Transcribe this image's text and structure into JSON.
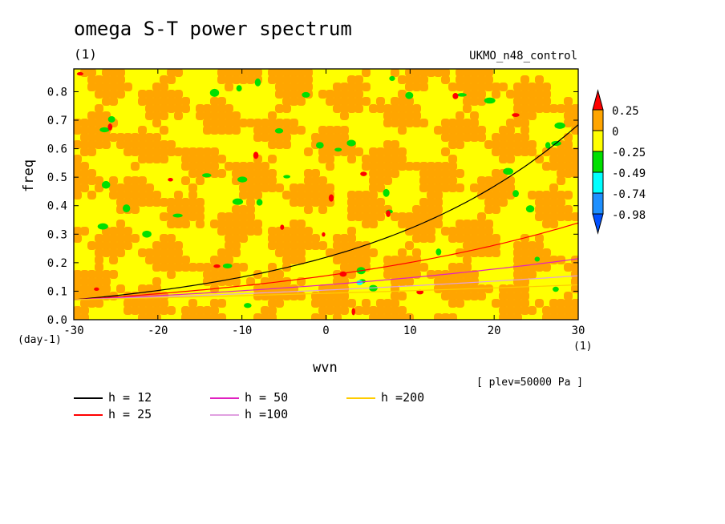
{
  "chart_data": {
    "type": "heatmap",
    "title": "omega S-T power spectrum",
    "subtitle": "(1)",
    "dataset_label": "UKMO_n48_control",
    "xlabel": "wvn",
    "x_unit": "(1)",
    "ylabel": "freq",
    "y_unit": "(day-1)",
    "level_label": "[ plev=50000 Pa ]",
    "xlim": [
      -30,
      30
    ],
    "ylim": [
      0,
      0.88
    ],
    "x_ticks": [
      "-30",
      "-20",
      "-10",
      "0",
      "10",
      "20",
      "30"
    ],
    "y_ticks": [
      "0.0",
      "0.1",
      "0.2",
      "0.3",
      "0.4",
      "0.5",
      "0.6",
      "0.7",
      "0.8"
    ],
    "colorbar": {
      "levels": [
        "0.25",
        "0",
        "-0.25",
        "-0.49",
        "-0.74",
        "-0.98"
      ],
      "colors": [
        "#ff0000",
        "#ffa500",
        "#ffff00",
        "#00e000",
        "#00ffff",
        "#1e90ff",
        "#0050ff"
      ]
    },
    "dispersion_curves": [
      {
        "name": "h = 12",
        "h": 12,
        "color": "#000000"
      },
      {
        "name": "h = 25",
        "h": 25,
        "color": "#ff0000"
      },
      {
        "name": "h = 50",
        "h": 50,
        "color": "#e020c0"
      },
      {
        "name": "h =100",
        "h": 100,
        "color": "#e0a0e0"
      },
      {
        "name": "h =200",
        "h": 200,
        "color": "#ffcc00"
      }
    ]
  }
}
